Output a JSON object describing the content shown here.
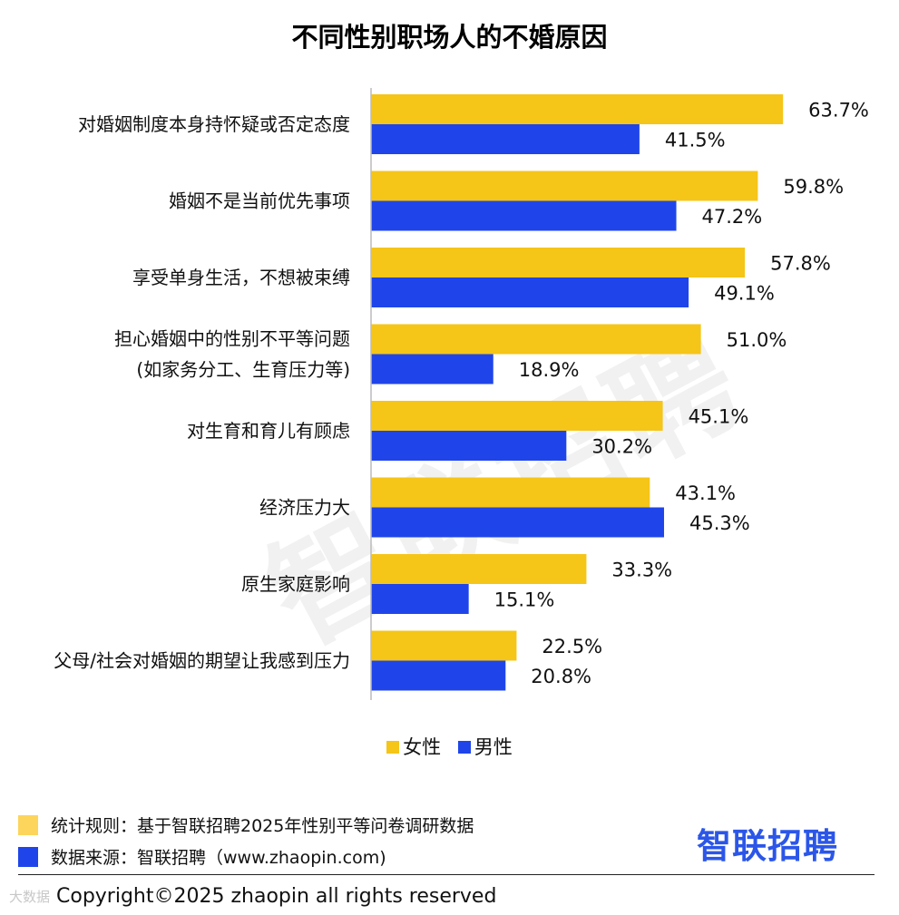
{
  "chart_data": {
    "type": "bar",
    "orientation": "horizontal",
    "title": "不同性别职场人的不婚原因",
    "categories": [
      [
        "对婚姻制度本身持怀疑或否定态度"
      ],
      [
        "婚姻不是当前优先事项"
      ],
      [
        "享受单身生活，不想被束缚"
      ],
      [
        "担心婚姻中的性别不平等问题",
        "(如家务分工、生育压力等)"
      ],
      [
        "对生育和育儿有顾虑"
      ],
      [
        "经济压力大"
      ],
      [
        "原生家庭影响"
      ],
      [
        "父母/社会对婚姻的期望让我感到压力"
      ]
    ],
    "series": [
      {
        "name": "女性",
        "color": "#f5c518",
        "values": [
          63.7,
          59.8,
          57.8,
          51.0,
          45.1,
          43.1,
          33.3,
          22.5
        ],
        "labels": [
          "63.7%",
          "59.8%",
          "57.8%",
          "51.0%",
          "45.1%",
          "43.1%",
          "33.3%",
          "22.5%"
        ]
      },
      {
        "name": "男性",
        "color": "#1f45ea",
        "values": [
          41.5,
          47.2,
          49.1,
          18.9,
          30.2,
          45.3,
          15.1,
          20.8
        ],
        "labels": [
          "41.5%",
          "47.2%",
          "49.1%",
          "18.9%",
          "30.2%",
          "45.3%",
          "15.1%",
          "20.8%"
        ]
      }
    ],
    "xlim": [
      0,
      70
    ],
    "grid": false,
    "legend_position": "bottom-center"
  },
  "watermark": "智联招聘",
  "footer": {
    "rule_label": "统计规则：基于智联招聘2025年性别平等问卷调研数据",
    "source_label": "数据来源：智联招聘（www.zhaopin.com)",
    "rule_color": "#fdd55c",
    "source_color": "#1f45ea",
    "brand": "智联招聘",
    "brand_color": "#2b56e8",
    "copyright": "Copyright©2025 zhaopin all rights reserved",
    "corner_logo": "大数据"
  }
}
